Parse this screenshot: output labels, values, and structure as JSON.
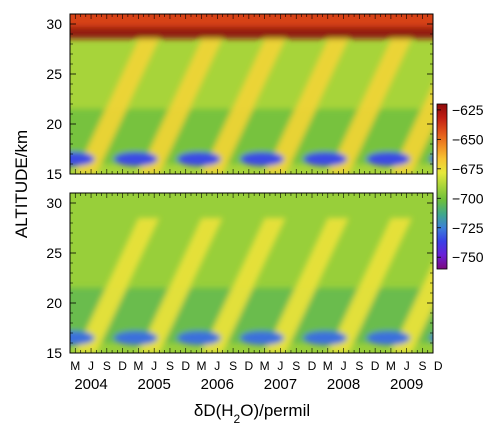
{
  "chart_data": [
    {
      "type": "heatmap",
      "panel": "top",
      "ylabel": "ALTITUDE/km",
      "ylim": [
        15,
        31
      ],
      "yticks": [
        15,
        20,
        25,
        30
      ],
      "xlim": [
        "2004-04",
        "2009-12"
      ],
      "month_ticks": [
        "M",
        "J",
        "S",
        "D",
        "M",
        "J",
        "S",
        "D",
        "M",
        "J",
        "S",
        "D",
        "M",
        "J",
        "S",
        "D",
        "M",
        "J",
        "S",
        "D",
        "M",
        "J",
        "S",
        "D"
      ],
      "year_labels": [
        "2004",
        "2005",
        "2006",
        "2007",
        "2008",
        "2009"
      ],
      "features": {
        "upper_layer_altitude_km": [
          29.5,
          31
        ],
        "upper_layer_value": -640,
        "background_value": -690,
        "tape_recorder_enriched_value": -672,
        "tape_recorder_depleted_value": -735,
        "depleted_layer_altitude_km": [
          15.5,
          17.5
        ]
      }
    },
    {
      "type": "heatmap",
      "panel": "bottom",
      "ylabel": "ALTITUDE/km",
      "ylim": [
        15,
        31
      ],
      "yticks": [
        15,
        20,
        25,
        30
      ],
      "xlim": [
        "2004-04",
        "2009-12"
      ],
      "month_ticks": [
        "M",
        "J",
        "S",
        "D",
        "M",
        "J",
        "S",
        "D",
        "M",
        "J",
        "S",
        "D",
        "M",
        "J",
        "S",
        "D",
        "M",
        "J",
        "S",
        "D",
        "M",
        "J",
        "S",
        "D"
      ],
      "year_labels": [
        "2004",
        "2005",
        "2006",
        "2007",
        "2008",
        "2009"
      ],
      "features": {
        "background_value": -693,
        "tape_recorder_enriched_value": -676,
        "tape_recorder_depleted_value": -728,
        "depleted_layer_altitude_km": [
          15.5,
          17.5
        ]
      }
    }
  ],
  "axis": {
    "ylabel": "ALTITUDE/km",
    "xlabel_prefix": "δD(H",
    "xlabel_sub": "2",
    "xlabel_suffix": "O)/permil"
  },
  "colorbar": {
    "ticks": [
      -625,
      -650,
      -675,
      -700,
      -725,
      -750
    ],
    "range": [
      -760,
      -620
    ],
    "colors": [
      "#7b0a7d",
      "#6a1fd6",
      "#3a3fe6",
      "#3c80d8",
      "#3fa88a",
      "#6cbf3b",
      "#a7d43a",
      "#e6e83b",
      "#f7c431",
      "#f08a22",
      "#e0521a",
      "#c11e14",
      "#8e0a0a"
    ]
  }
}
